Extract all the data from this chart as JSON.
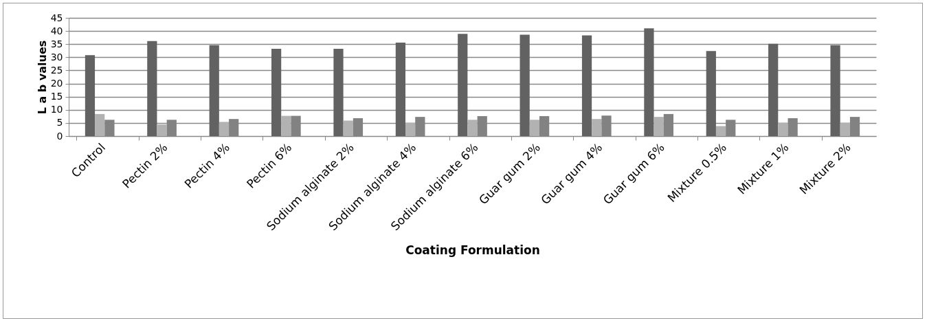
{
  "chart_data": {
    "type": "bar",
    "xlabel": "Coating Formulation",
    "ylabel": "L a b values",
    "categories": [
      "Control",
      "Pectin 2%",
      "Pectin 4%",
      "Pectin 6%",
      "Sodium alginate 2%",
      "Sodium alginate 4%",
      "Sodium alginate 6%",
      "Guar gum 2%",
      "Guar gum 4%",
      "Guar gum 6%",
      "Mixture 0.5%",
      "Mixture 1%",
      "Mixture 2%"
    ],
    "series": [
      {
        "color": "#626262",
        "values": [
          30.8,
          36.2,
          34.6,
          33.2,
          33.2,
          35.6,
          38.9,
          38.6,
          38.3,
          41.0,
          32.4,
          35.1,
          34.6
        ]
      },
      {
        "color": "#b2b2b2",
        "values": [
          8.4,
          4.4,
          5.4,
          7.7,
          5.9,
          5.1,
          6.2,
          6.2,
          6.5,
          7.3,
          3.8,
          5.1,
          5.1
        ]
      },
      {
        "color": "#828282",
        "values": [
          6.2,
          6.2,
          6.5,
          7.7,
          6.8,
          7.3,
          7.6,
          7.6,
          7.8,
          8.4,
          6.2,
          6.8,
          7.3
        ]
      }
    ],
    "ylim": [
      0,
      45
    ],
    "yticks": [
      0,
      5,
      10,
      15,
      20,
      25,
      30,
      35,
      40,
      45
    ],
    "grid": "y",
    "legend": false
  }
}
